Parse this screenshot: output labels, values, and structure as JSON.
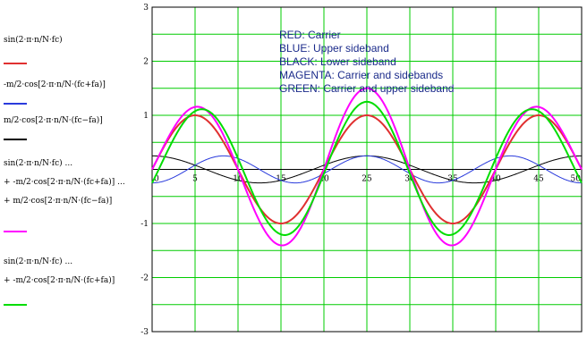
{
  "expressions": {
    "e1": {
      "line1": "sin(2·π·n/N·fc)",
      "color": "#e03030"
    },
    "e2": {
      "line1": "-m/2·cos[2·π·n/N·(fc+fa)]",
      "color": "#2a3bdc"
    },
    "e3": {
      "line1": "m/2·cos[2·π·n/N·(fc−fa)]",
      "color": "#000000"
    },
    "e4": {
      "line1": "sin(2·π·n/N·fc) ...",
      "line2": "+ -m/2·cos[2·π·n/N·(fc+fa)] ...",
      "line3": "+ m/2·cos[2·π·n/N·(fc−fa)]",
      "color": "#ff00ff"
    },
    "e5": {
      "line1": "sin(2·π·n/N·fc) ...",
      "line2": "+ -m/2·cos[2·π·n/N·(fc+fa)]",
      "color": "#00dd00"
    }
  },
  "annotations": [
    "RED: Carrier",
    "BLUE: Upper sideband",
    "BLACK: Lower sideband",
    "MAGENTA: Carrier and sidebands",
    "GREEN: Carrier and upper sideband"
  ],
  "chart_data": {
    "type": "line",
    "xlim": [
      0,
      50
    ],
    "ylim": [
      -3,
      3
    ],
    "x_ticks": [
      "0",
      "5",
      "10",
      "15",
      "20",
      "25",
      "30",
      "35",
      "40",
      "45",
      "50"
    ],
    "y_ticks": [
      "3",
      "2",
      "1",
      "0",
      "-1",
      "-2",
      "-3"
    ],
    "grid": true,
    "grid_color": "#00cc00",
    "N": 50,
    "fc": 2.5,
    "fa": 0.5,
    "m": 0.5,
    "series": [
      {
        "key": "carrier",
        "color": "#e03030",
        "formula": "sin(2πn fc/N)"
      },
      {
        "key": "usb",
        "color": "#2a3bdc",
        "formula": "-(m/2)cos(2πn(fc+fa)/N)"
      },
      {
        "key": "lsb",
        "color": "#000000",
        "formula": "(m/2)cos(2πn(fc-fa)/N)"
      },
      {
        "key": "full",
        "color": "#ff00ff",
        "formula": "carrier+usb+lsb"
      },
      {
        "key": "ssb",
        "color": "#00dd00",
        "formula": "carrier+usb"
      }
    ]
  }
}
